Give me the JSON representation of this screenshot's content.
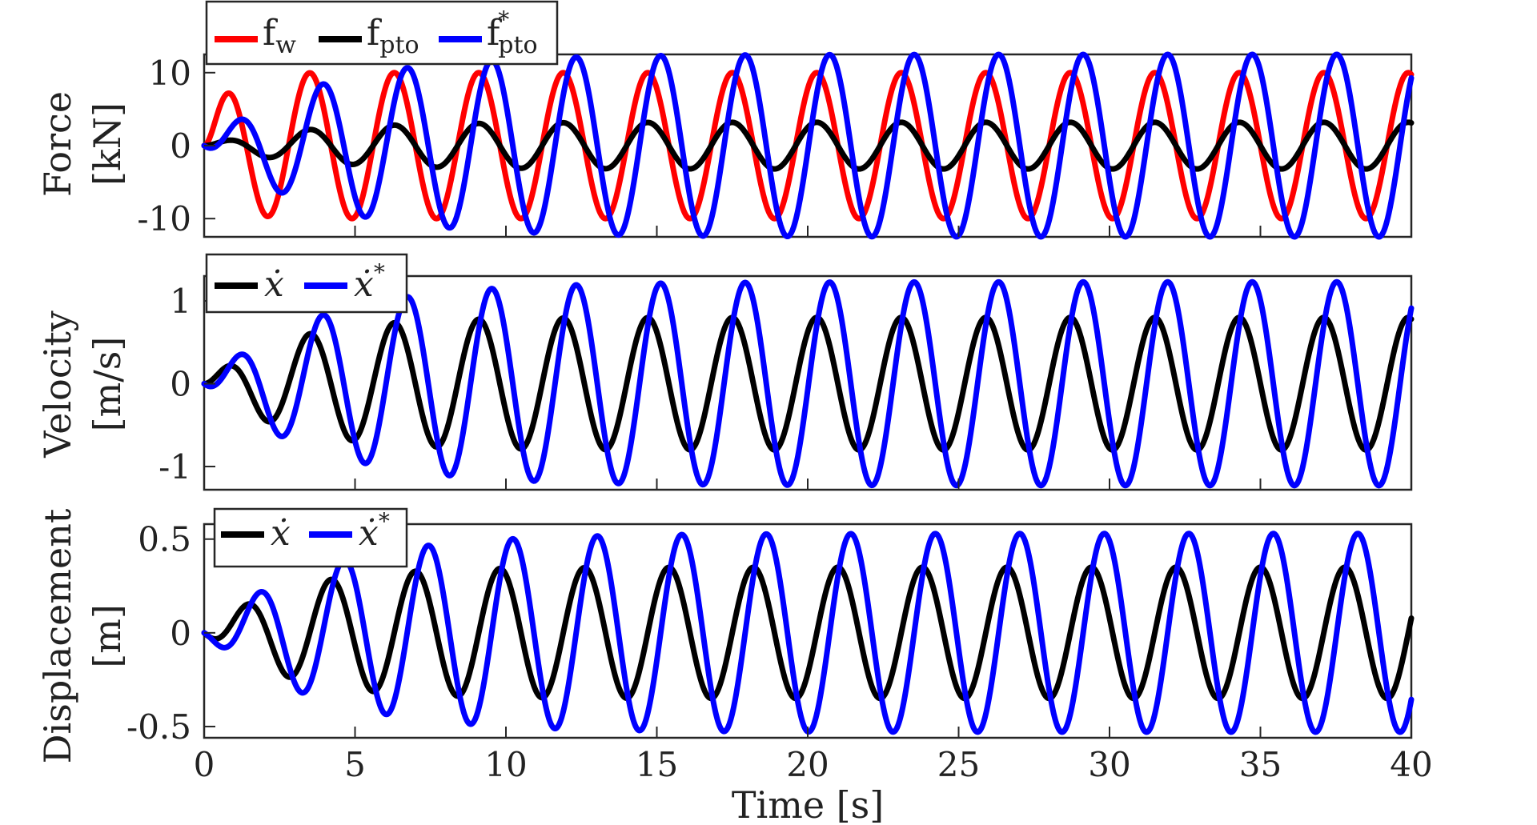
{
  "chart_data": [
    {
      "type": "line",
      "ylabel_line1": "Force",
      "ylabel_line2": "[kN]",
      "ylim": [
        -12.5,
        12.5
      ],
      "yticks": [
        {
          "v": -10,
          "label": "-10"
        },
        {
          "v": 0,
          "label": "0"
        },
        {
          "v": 10,
          "label": "10"
        }
      ],
      "xlim": [
        0,
        40
      ],
      "legend": {
        "position": "top-left",
        "entries": [
          {
            "base": "f",
            "sub": "w",
            "sup": "",
            "color": "#ff0000"
          },
          {
            "base": "f",
            "sub": "pto",
            "sup": "",
            "color": "#000000"
          },
          {
            "base": "f",
            "sub": "pto",
            "sup": "*",
            "color": "#0000ff"
          }
        ]
      },
      "series": [
        {
          "color": "#ff0000",
          "model": {
            "amp": 10,
            "period": 2.8,
            "phase_deg": 0,
            "ramp": 0.6,
            "delay": 0
          }
        },
        {
          "color": "#000000",
          "model": {
            "amp": 3.2,
            "period": 2.8,
            "phase_deg": 0,
            "ramp": 3.0,
            "delay": 0
          }
        },
        {
          "color": "#0000ff",
          "model": {
            "amp": 12.5,
            "period": 2.8,
            "phase_deg": -55,
            "ramp": 3.5,
            "delay": 0
          }
        }
      ]
    },
    {
      "type": "line",
      "ylabel_line1": "Velocity",
      "ylabel_line2": "[m/s]",
      "ylim": [
        -1.28,
        1.3
      ],
      "yticks": [
        {
          "v": -1,
          "label": "-1"
        },
        {
          "v": 0,
          "label": "0"
        },
        {
          "v": 1,
          "label": "1"
        }
      ],
      "xlim": [
        0,
        40
      ],
      "legend": {
        "position": "top-left",
        "entries": [
          {
            "base": "ẋ",
            "sub": "",
            "sup": "",
            "color": "#000000"
          },
          {
            "base": "ẋ",
            "sub": "",
            "sup": "*",
            "color": "#0000ff"
          }
        ]
      },
      "series": [
        {
          "color": "#000000",
          "model": {
            "amp": 0.8,
            "period": 2.8,
            "phase_deg": 0,
            "ramp": 2.5,
            "delay": 0
          }
        },
        {
          "color": "#0000ff",
          "model": {
            "amp": 1.23,
            "period": 2.8,
            "phase_deg": -55,
            "ramp": 3.5,
            "delay": 0
          }
        }
      ]
    },
    {
      "type": "line",
      "ylabel_line1": "Displacement",
      "ylabel_line2": "[m]",
      "ylim": [
        -0.56,
        0.58
      ],
      "yticks": [
        {
          "v": -0.5,
          "label": "-0.5"
        },
        {
          "v": 0,
          "label": "0"
        },
        {
          "v": 0.5,
          "label": "0.5"
        }
      ],
      "xlim": [
        0,
        40
      ],
      "xticks": [
        {
          "v": 0,
          "label": "0"
        },
        {
          "v": 5,
          "label": "5"
        },
        {
          "v": 10,
          "label": "10"
        },
        {
          "v": 15,
          "label": "15"
        },
        {
          "v": 20,
          "label": "20"
        },
        {
          "v": 25,
          "label": "25"
        },
        {
          "v": 30,
          "label": "30"
        },
        {
          "v": 35,
          "label": "35"
        },
        {
          "v": 40,
          "label": "40"
        }
      ],
      "xlabel": "Time [s]",
      "legend": {
        "position": "top-left",
        "entries": [
          {
            "base": "ẋ",
            "sub": "",
            "sup": "",
            "color": "#000000"
          },
          {
            "base": "ẋ",
            "sub": "",
            "sup": "*",
            "color": "#0000ff"
          }
        ]
      },
      "series": [
        {
          "color": "#000000",
          "model": {
            "amp": 0.35,
            "period": 2.8,
            "phase_deg": -90,
            "ramp": 2.5,
            "delay": 0
          }
        },
        {
          "color": "#0000ff",
          "model": {
            "amp": 0.53,
            "period": 2.8,
            "phase_deg": -145,
            "ramp": 3.5,
            "delay": 0
          }
        }
      ]
    }
  ]
}
